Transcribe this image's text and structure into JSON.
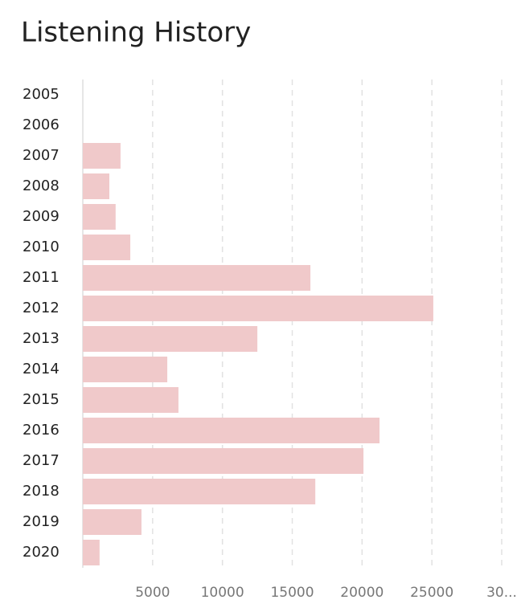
{
  "chart_data": {
    "type": "barh",
    "title": "Listening History",
    "categories": [
      "2005",
      "2006",
      "2007",
      "2008",
      "2009",
      "2010",
      "2011",
      "2012",
      "2013",
      "2014",
      "2015",
      "2016",
      "2017",
      "2018",
      "2019",
      "2020"
    ],
    "values": [
      0,
      0,
      2700,
      1900,
      2350,
      3400,
      16300,
      25100,
      12500,
      6050,
      6850,
      21250,
      20100,
      16650,
      4200,
      1200
    ],
    "color": "#f0c9ca",
    "xlim": [
      0,
      30000
    ],
    "xticks": [
      5000,
      10000,
      15000,
      20000,
      25000,
      {
        "value": 30000,
        "label": "30..."
      }
    ],
    "grid": true
  }
}
